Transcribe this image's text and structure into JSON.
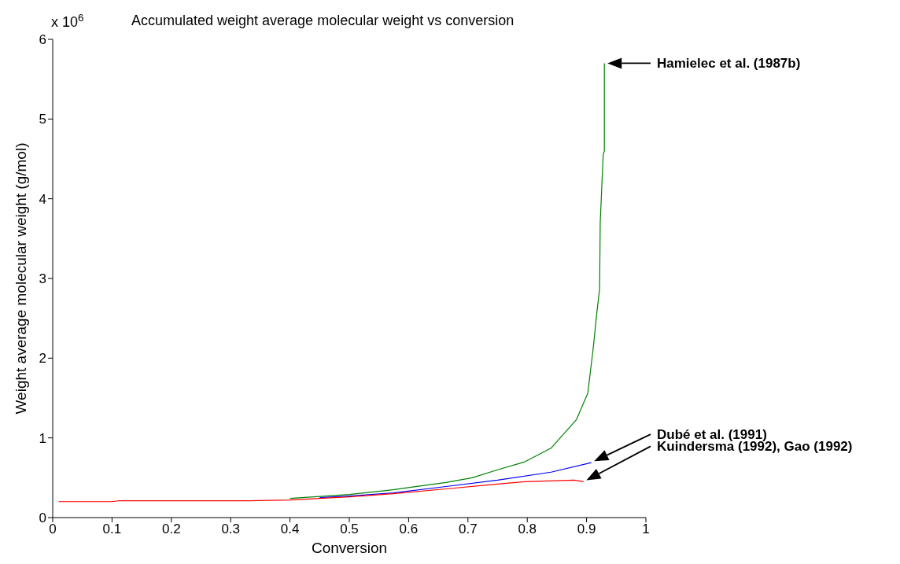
{
  "chart_data": {
    "type": "line",
    "title": "Accumulated weight average molecular weight vs conversion",
    "xlabel": "Conversion",
    "ylabel": "Weight average molecular weight (g/mol)",
    "xlim": [
      0,
      1
    ],
    "xticks": [
      0,
      0.1,
      0.2,
      0.3,
      0.4,
      0.5,
      0.6,
      0.7,
      0.8,
      0.9,
      1
    ],
    "ylim": [
      0,
      6
    ],
    "yticks": [
      0,
      1,
      2,
      3,
      4,
      5,
      6
    ],
    "grid": false,
    "legend": false,
    "series": [
      {
        "color": "#008000",
        "x": [
          0.4,
          0.5,
          0.574,
          0.663,
          0.707,
          0.75,
          0.796,
          0.84,
          0.883,
          0.902,
          0.91,
          0.912,
          0.917,
          0.922,
          0.923,
          0.928,
          0.93,
          0.93
        ],
        "values": [
          0.24,
          0.29,
          0.35,
          0.44,
          0.5,
          0.6,
          0.7,
          0.87,
          1.23,
          1.56,
          2.05,
          2.18,
          2.55,
          2.87,
          3.7,
          4.55,
          4.6,
          5.7
        ]
      },
      {
        "color": "#0000ff",
        "x": [
          0.45,
          0.5,
          0.574,
          0.663,
          0.75,
          0.84,
          0.908
        ],
        "values": [
          0.25,
          0.27,
          0.31,
          0.39,
          0.47,
          0.57,
          0.69
        ]
      },
      {
        "color": "#ff0000",
        "x": [
          0.01,
          0.1,
          0.11,
          0.33,
          0.4,
          0.5,
          0.574,
          0.663,
          0.75,
          0.796,
          0.879,
          0.895
        ],
        "values": [
          0.2,
          0.2,
          0.21,
          0.21,
          0.22,
          0.26,
          0.3,
          0.36,
          0.42,
          0.45,
          0.47,
          0.45
        ]
      }
    ],
    "annotations": [
      "x 10$^{6}$",
      "Hamielec et al. (1987b)",
      "Dubé et al. (1991)",
      "Kuindersma (1992), Gao (1992)"
    ]
  }
}
